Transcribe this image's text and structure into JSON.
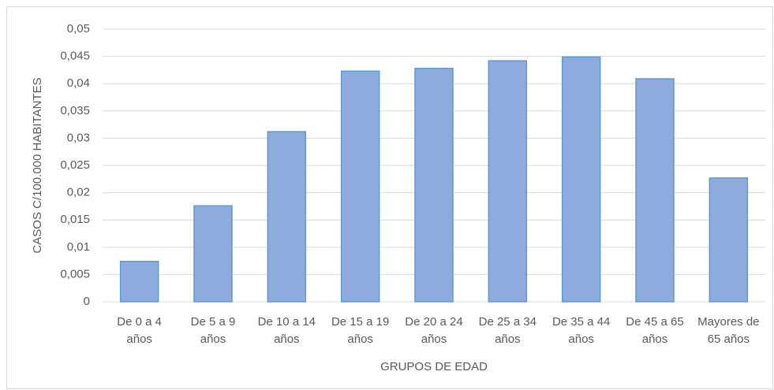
{
  "chart_data": {
    "type": "bar",
    "categories": [
      "De 0 a 4 años",
      "De 5 a 9 años",
      "De 10 a 14 años",
      "De 15 a 19 años",
      "De 20 a 24 años",
      "De 25 a 34 años",
      "De 35 a 44 años",
      "De 45 a 65 años",
      "Mayores de 65 años"
    ],
    "values": [
      0.0074,
      0.0176,
      0.0312,
      0.0423,
      0.0428,
      0.0442,
      0.0449,
      0.0409,
      0.0227
    ],
    "color": "#8faadc",
    "edge_color": "#5b9bd5",
    "x_label": "GRUPOS DE EDAD",
    "y_label": "CASOS C/100.000 HABITANTES",
    "ylim": [
      0,
      0.05
    ],
    "yticks": [
      0,
      {
        "value": 0.005,
        "label": "0,005"
      },
      {
        "value": 0.01,
        "label": "0,01"
      },
      {
        "value": 0.015,
        "label": "0,015"
      },
      {
        "value": 0.02,
        "label": "0,02"
      },
      {
        "value": 0.025,
        "label": "0,025"
      },
      {
        "value": 0.03,
        "label": "0,03"
      },
      {
        "value": 0.035,
        "label": "0,035"
      },
      {
        "value": 0.04,
        "label": "0,04"
      },
      {
        "value": 0.045,
        "label": "0,045"
      },
      {
        "value": 0.05,
        "label": "0,05"
      }
    ],
    "grid": true
  }
}
